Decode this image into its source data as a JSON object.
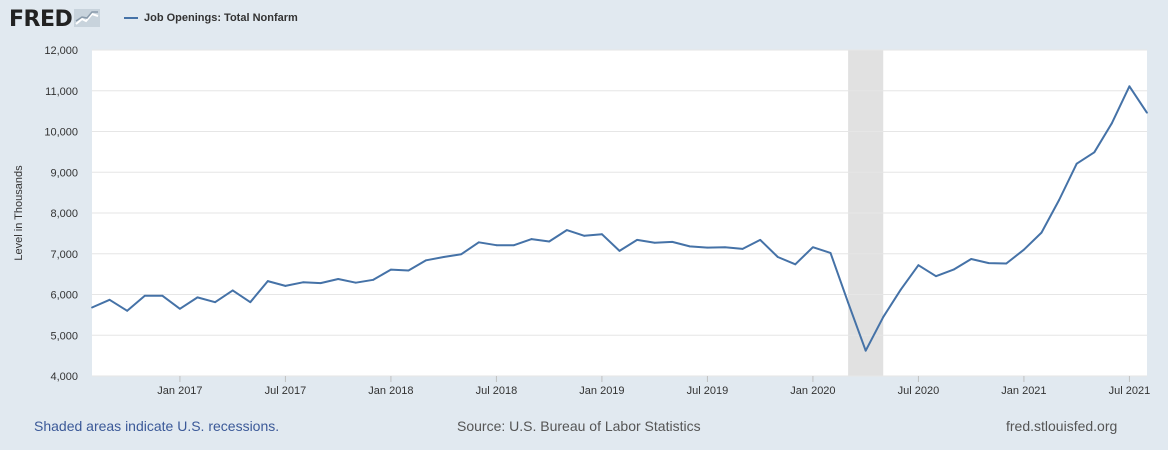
{
  "brand": {
    "name": "FRED"
  },
  "legend": {
    "series_name": "Job Openings: Total Nonfarm",
    "color": "#4572a7"
  },
  "footer": {
    "recession_note": "Shaded areas indicate U.S. recessions.",
    "source": "Source: U.S. Bureau of Labor Statistics",
    "site": "fred.stlouisfed.org"
  },
  "chart_data": {
    "type": "line",
    "ylabel": "Level in Thousands",
    "ylim": [
      4000,
      12000
    ],
    "yticks": [
      4000,
      5000,
      6000,
      7000,
      8000,
      9000,
      10000,
      11000,
      12000
    ],
    "ytick_labels": [
      "4,000",
      "5,000",
      "6,000",
      "7,000",
      "8,000",
      "9,000",
      "10,000",
      "11,000",
      "12,000"
    ],
    "xlim": [
      "2016-08",
      "2021-08"
    ],
    "xticks": [
      "2017-01",
      "2017-07",
      "2018-01",
      "2018-07",
      "2019-01",
      "2019-07",
      "2020-01",
      "2020-07",
      "2021-01",
      "2021-07"
    ],
    "xtick_labels": [
      "Jan 2017",
      "Jul 2017",
      "Jan 2018",
      "Jul 2018",
      "Jan 2019",
      "Jul 2019",
      "Jan 2020",
      "Jul 2020",
      "Jan 2021",
      "Jul 2021"
    ],
    "recessions": [
      {
        "start": "2020-03",
        "end": "2020-05"
      }
    ],
    "grid": true,
    "legend_position": "top-left",
    "series": [
      {
        "name": "Job Openings: Total Nonfarm",
        "color": "#4572a7",
        "x": [
          "2016-08",
          "2016-09",
          "2016-10",
          "2016-11",
          "2016-12",
          "2017-01",
          "2017-02",
          "2017-03",
          "2017-04",
          "2017-05",
          "2017-06",
          "2017-07",
          "2017-08",
          "2017-09",
          "2017-10",
          "2017-11",
          "2017-12",
          "2018-01",
          "2018-02",
          "2018-03",
          "2018-04",
          "2018-05",
          "2018-06",
          "2018-07",
          "2018-08",
          "2018-09",
          "2018-10",
          "2018-11",
          "2018-12",
          "2019-01",
          "2019-02",
          "2019-03",
          "2019-04",
          "2019-05",
          "2019-06",
          "2019-07",
          "2019-08",
          "2019-09",
          "2019-10",
          "2019-11",
          "2019-12",
          "2020-01",
          "2020-02",
          "2020-03",
          "2020-04",
          "2020-05",
          "2020-06",
          "2020-07",
          "2020-08",
          "2020-09",
          "2020-10",
          "2020-11",
          "2020-12",
          "2021-01",
          "2021-02",
          "2021-03",
          "2021-04",
          "2021-05",
          "2021-06",
          "2021-07",
          "2021-08"
        ],
        "values": [
          5680,
          5870,
          5600,
          5970,
          5970,
          5650,
          5930,
          5810,
          6100,
          5810,
          6330,
          6210,
          6300,
          6280,
          6380,
          6290,
          6360,
          6610,
          6590,
          6840,
          6920,
          6990,
          7280,
          7210,
          7210,
          7360,
          7300,
          7580,
          7440,
          7480,
          7070,
          7340,
          7270,
          7290,
          7180,
          7150,
          7160,
          7120,
          7340,
          6920,
          6740,
          7160,
          7020,
          5800,
          4620,
          5450,
          6120,
          6720,
          6450,
          6610,
          6870,
          6770,
          6760,
          7100,
          7520,
          8320,
          9210,
          9490,
          10200,
          11110,
          10460
        ]
      }
    ]
  }
}
